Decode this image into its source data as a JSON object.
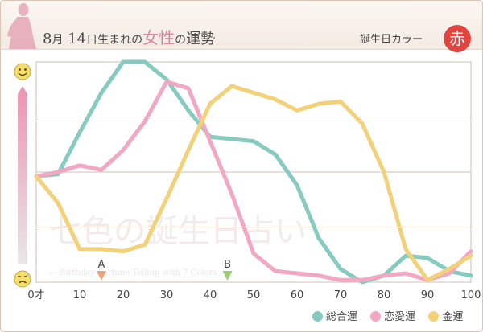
{
  "header": {
    "month": "8",
    "month_unit": "月",
    "day": "14",
    "day_suffix": "日生まれの",
    "gender": "女性",
    "particle": "の",
    "fortune": "運勢",
    "birth_color_label": "誕生日カラー",
    "birth_color_name": "赤",
    "birth_color_hex": "#e0463f"
  },
  "watermark": {
    "main": "七色の誕生日占い",
    "sub": "— Birthday Fortune Telling with 7 Colors —"
  },
  "chart_data": {
    "type": "line",
    "title": "",
    "xlabel": "",
    "ylabel": "",
    "xlim": [
      0,
      100
    ],
    "ylim": [
      0,
      100
    ],
    "x_ticks": [
      0,
      10,
      20,
      30,
      40,
      50,
      60,
      70,
      80,
      90,
      100
    ],
    "x_tick_labels": [
      "0才",
      "10",
      "20",
      "30",
      "40",
      "50",
      "60",
      "70",
      "80",
      "90",
      "100"
    ],
    "grid": true,
    "legend_position": "bottom-right",
    "y_axis_icons": [
      "smile-face",
      "sad-face"
    ],
    "markers": [
      {
        "label": "A",
        "x": 15,
        "color": "#f0a27c"
      },
      {
        "label": "B",
        "x": 44,
        "color": "#9ccf74"
      }
    ],
    "series": [
      {
        "name": "総合運",
        "color": "#86cbc0",
        "points": [
          [
            0,
            48
          ],
          [
            5,
            49
          ],
          [
            10,
            68
          ],
          [
            15,
            86
          ],
          [
            20,
            100
          ],
          [
            25,
            100
          ],
          [
            30,
            92
          ],
          [
            35,
            78
          ],
          [
            40,
            66
          ],
          [
            45,
            65
          ],
          [
            50,
            64
          ],
          [
            55,
            58
          ],
          [
            60,
            44
          ],
          [
            65,
            20
          ],
          [
            70,
            6
          ],
          [
            75,
            0
          ],
          [
            80,
            3
          ],
          [
            85,
            12
          ],
          [
            90,
            11
          ],
          [
            95,
            5
          ],
          [
            100,
            3
          ]
        ]
      },
      {
        "name": "恋愛運",
        "color": "#f2a7c2",
        "points": [
          [
            0,
            48
          ],
          [
            5,
            50
          ],
          [
            10,
            53
          ],
          [
            15,
            51
          ],
          [
            20,
            60
          ],
          [
            25,
            73
          ],
          [
            30,
            91
          ],
          [
            35,
            88
          ],
          [
            40,
            64
          ],
          [
            45,
            40
          ],
          [
            50,
            13
          ],
          [
            55,
            5
          ],
          [
            60,
            4
          ],
          [
            65,
            3
          ],
          [
            70,
            1
          ],
          [
            75,
            1
          ],
          [
            80,
            3
          ],
          [
            85,
            4
          ],
          [
            90,
            1
          ],
          [
            95,
            4
          ],
          [
            100,
            14
          ]
        ]
      },
      {
        "name": "金運",
        "color": "#f3d178",
        "points": [
          [
            0,
            48
          ],
          [
            5,
            36
          ],
          [
            10,
            15
          ],
          [
            15,
            15
          ],
          [
            20,
            14
          ],
          [
            25,
            17
          ],
          [
            30,
            38
          ],
          [
            35,
            60
          ],
          [
            40,
            81
          ],
          [
            45,
            89
          ],
          [
            50,
            86
          ],
          [
            55,
            83
          ],
          [
            60,
            78
          ],
          [
            65,
            81
          ],
          [
            70,
            82
          ],
          [
            75,
            72
          ],
          [
            80,
            50
          ],
          [
            85,
            15
          ],
          [
            90,
            1
          ],
          [
            95,
            6
          ],
          [
            100,
            12
          ]
        ]
      }
    ]
  }
}
